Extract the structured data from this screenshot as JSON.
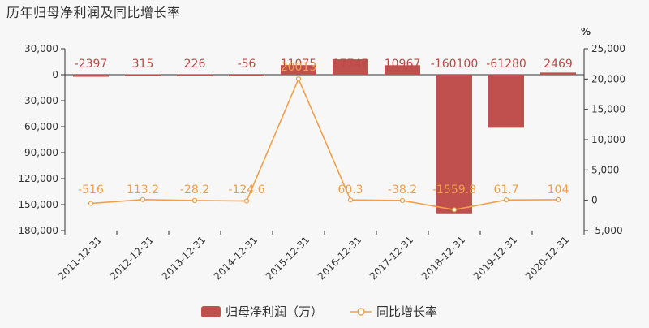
{
  "title": "历年归母净利润及同比增长率",
  "chart_data": {
    "type": "bar+line",
    "categories": [
      "2011-12-31",
      "2012-12-31",
      "2013-12-31",
      "2014-12-31",
      "2015-12-31",
      "2016-12-31",
      "2017-12-31",
      "2018-12-31",
      "2019-12-31",
      "2020-12-31"
    ],
    "series": [
      {
        "name": "归母净利润（万）",
        "type": "bar",
        "axis": "left",
        "color": "#c0504d",
        "values": [
          -2397,
          315,
          226,
          -56,
          11075,
          17747,
          10967,
          -160100,
          -61280,
          2469
        ],
        "labels": [
          "-2397",
          "315",
          "226",
          "-56",
          "11075",
          "17747",
          "10967",
          "-160100",
          "-61280",
          "2469"
        ]
      },
      {
        "name": "同比增长率",
        "type": "line",
        "axis": "right",
        "color": "#f0a04b",
        "values": [
          -516,
          113.2,
          -28.2,
          -124.6,
          20013,
          60.3,
          -38.2,
          -1559.8,
          61.7,
          104
        ],
        "labels": [
          "-516",
          "113.2",
          "-28.2",
          "-124.6",
          "20013",
          "60.3",
          "-38.2",
          "-1559.8",
          "61.7",
          "104"
        ]
      }
    ],
    "left_axis": {
      "min": -180000,
      "max": 30000,
      "ticks": [
        30000,
        0,
        -30000,
        -60000,
        -90000,
        -120000,
        -150000,
        -180000
      ],
      "tick_labels": [
        "30,000",
        "0",
        "-30,000",
        "-60,000",
        "-90,000",
        "-120,000",
        "-150,000",
        "-180,000"
      ]
    },
    "right_axis": {
      "min": -5000,
      "max": 25000,
      "unit": "%",
      "ticks": [
        25000,
        20000,
        15000,
        10000,
        5000,
        0,
        -5000
      ],
      "tick_labels": [
        "25,000",
        "20,000",
        "15,000",
        "10,000",
        "5,000",
        "0",
        "-5,000"
      ]
    },
    "legend_position": "bottom-center",
    "grid": false
  }
}
